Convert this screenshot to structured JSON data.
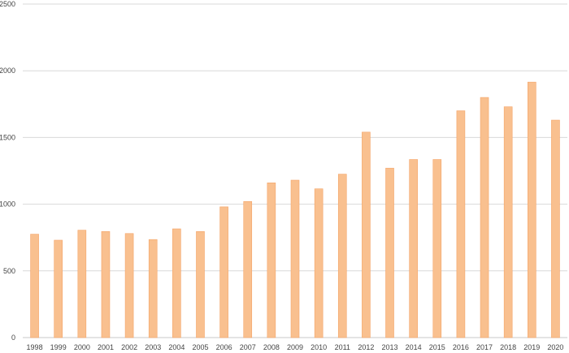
{
  "chart_data": {
    "type": "bar",
    "title": "",
    "xlabel": "",
    "ylabel": "",
    "categories": [
      "1998",
      "1999",
      "2000",
      "2001",
      "2002",
      "2003",
      "2004",
      "2005",
      "2006",
      "2007",
      "2008",
      "2009",
      "2010",
      "2011",
      "2012",
      "2013",
      "2014",
      "2015",
      "2016",
      "2017",
      "2018",
      "2019",
      "2020"
    ],
    "values": [
      775,
      730,
      805,
      795,
      780,
      735,
      815,
      795,
      980,
      1020,
      1160,
      1180,
      1115,
      1225,
      1540,
      1270,
      1335,
      1335,
      1700,
      1800,
      1730,
      1915,
      1630
    ],
    "ylim": [
      0,
      2500
    ],
    "yticks": [
      "0",
      "500",
      "1000",
      "1500",
      "2000",
      "2500"
    ],
    "grid": true,
    "legend": "none",
    "bar_color": "#f9c08f",
    "bar_edge_color": "#f4a468",
    "grid_color": "#d9d9d9"
  }
}
